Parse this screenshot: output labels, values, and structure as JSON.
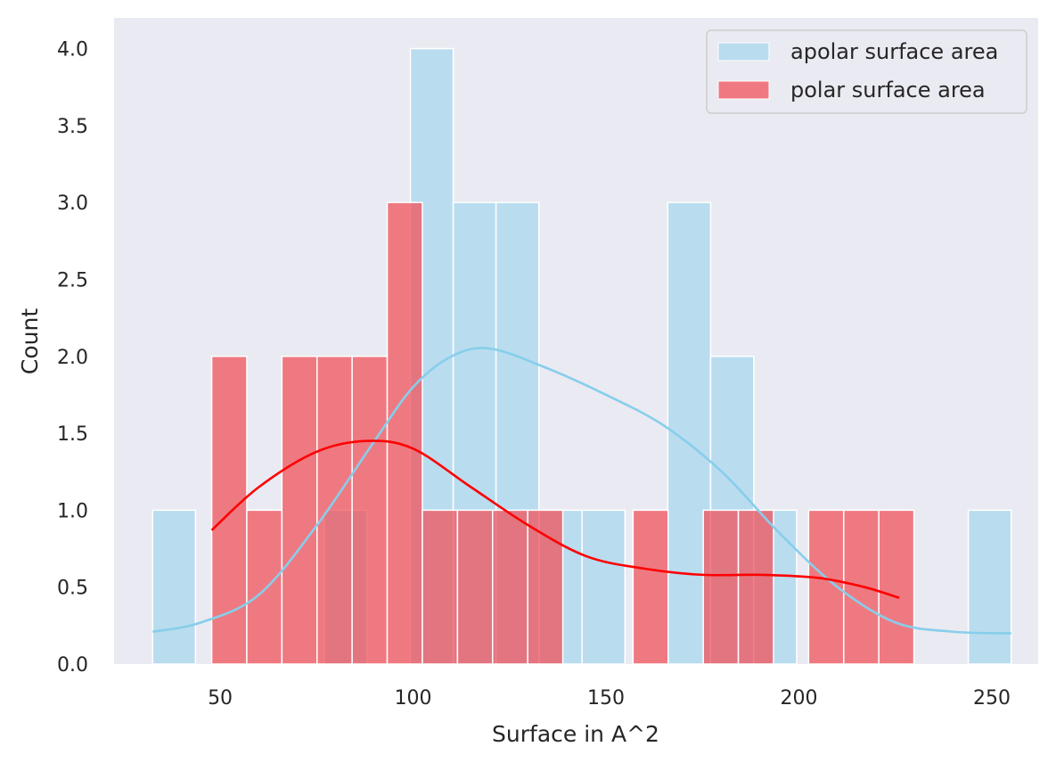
{
  "chart_data": {
    "type": "bar",
    "subtype": "histogram-with-kde",
    "xlabel": "Surface in A^2",
    "ylabel": "Count",
    "xlim": [
      22.5,
      262
    ],
    "ylim": [
      0,
      4.2
    ],
    "x_ticks": [
      50,
      100,
      150,
      200,
      250
    ],
    "y_ticks": [
      0.0,
      0.5,
      1.0,
      1.5,
      2.0,
      2.5,
      3.0,
      3.5,
      4.0
    ],
    "grid": false,
    "background_color": "#eaeaf2",
    "legend_position": "top-right",
    "series": [
      {
        "name": "apolar surface area",
        "color": "#87ceeb",
        "bar_opacity": 0.5,
        "bins": [
          {
            "x0": 32.5,
            "x1": 43.6,
            "count": 1
          },
          {
            "x0": 43.6,
            "x1": 54.8,
            "count": 0
          },
          {
            "x0": 54.8,
            "x1": 65.9,
            "count": 0
          },
          {
            "x0": 65.9,
            "x1": 77.0,
            "count": 0
          },
          {
            "x0": 77.0,
            "x1": 88.1,
            "count": 1
          },
          {
            "x0": 88.1,
            "x1": 99.3,
            "count": 0
          },
          {
            "x0": 99.3,
            "x1": 110.4,
            "count": 4
          },
          {
            "x0": 110.4,
            "x1": 121.5,
            "count": 3
          },
          {
            "x0": 121.5,
            "x1": 132.6,
            "count": 3
          },
          {
            "x0": 132.6,
            "x1": 143.8,
            "count": 1
          },
          {
            "x0": 143.8,
            "x1": 154.9,
            "count": 1
          },
          {
            "x0": 154.9,
            "x1": 166.0,
            "count": 0
          },
          {
            "x0": 166.0,
            "x1": 177.1,
            "count": 3
          },
          {
            "x0": 177.1,
            "x1": 188.3,
            "count": 2
          },
          {
            "x0": 188.3,
            "x1": 199.4,
            "count": 1
          },
          {
            "x0": 199.4,
            "x1": 210.5,
            "count": 0
          },
          {
            "x0": 210.5,
            "x1": 221.6,
            "count": 0
          },
          {
            "x0": 221.6,
            "x1": 232.8,
            "count": 0
          },
          {
            "x0": 232.8,
            "x1": 243.9,
            "count": 0
          },
          {
            "x0": 243.9,
            "x1": 255.0,
            "count": 1
          }
        ],
        "kde": {
          "x": [
            32.5,
            45,
            60,
            75,
            90,
            100,
            110,
            120,
            135,
            150,
            165,
            180,
            195,
            210,
            225,
            240,
            255
          ],
          "y": [
            0.21,
            0.27,
            0.45,
            0.9,
            1.45,
            1.8,
            2.0,
            2.05,
            1.92,
            1.75,
            1.55,
            1.25,
            0.85,
            0.5,
            0.27,
            0.21,
            0.2
          ]
        }
      },
      {
        "name": "polar surface area",
        "color": "#ff0000",
        "bar_color": "#f0535b",
        "bar_opacity": 0.75,
        "bins": [
          {
            "x0": 47.8,
            "x1": 56.9,
            "count": 2
          },
          {
            "x0": 56.9,
            "x1": 66.0,
            "count": 1
          },
          {
            "x0": 66.0,
            "x1": 75.1,
            "count": 2
          },
          {
            "x0": 75.1,
            "x1": 84.2,
            "count": 2
          },
          {
            "x0": 84.2,
            "x1": 93.3,
            "count": 2
          },
          {
            "x0": 93.3,
            "x1": 102.4,
            "count": 3
          },
          {
            "x0": 102.4,
            "x1": 111.5,
            "count": 1
          },
          {
            "x0": 111.5,
            "x1": 120.6,
            "count": 1
          },
          {
            "x0": 120.6,
            "x1": 129.7,
            "count": 1
          },
          {
            "x0": 129.7,
            "x1": 138.8,
            "count": 1
          },
          {
            "x0": 138.8,
            "x1": 147.9,
            "count": 0
          },
          {
            "x0": 147.9,
            "x1": 157.0,
            "count": 0
          },
          {
            "x0": 157.0,
            "x1": 166.1,
            "count": 1
          },
          {
            "x0": 166.1,
            "x1": 175.2,
            "count": 0
          },
          {
            "x0": 175.2,
            "x1": 184.3,
            "count": 1
          },
          {
            "x0": 184.3,
            "x1": 193.4,
            "count": 1
          },
          {
            "x0": 193.4,
            "x1": 202.5,
            "count": 0
          },
          {
            "x0": 202.5,
            "x1": 211.6,
            "count": 1
          },
          {
            "x0": 211.6,
            "x1": 220.7,
            "count": 1
          },
          {
            "x0": 220.7,
            "x1": 229.8,
            "count": 1
          }
        ],
        "kde": {
          "x": [
            47.8,
            60,
            75,
            88,
            100,
            115,
            130,
            145,
            160,
            175,
            190,
            205,
            217,
            226
          ],
          "y": [
            0.87,
            1.15,
            1.38,
            1.45,
            1.4,
            1.15,
            0.9,
            0.7,
            0.62,
            0.58,
            0.58,
            0.56,
            0.5,
            0.43
          ]
        }
      }
    ]
  }
}
